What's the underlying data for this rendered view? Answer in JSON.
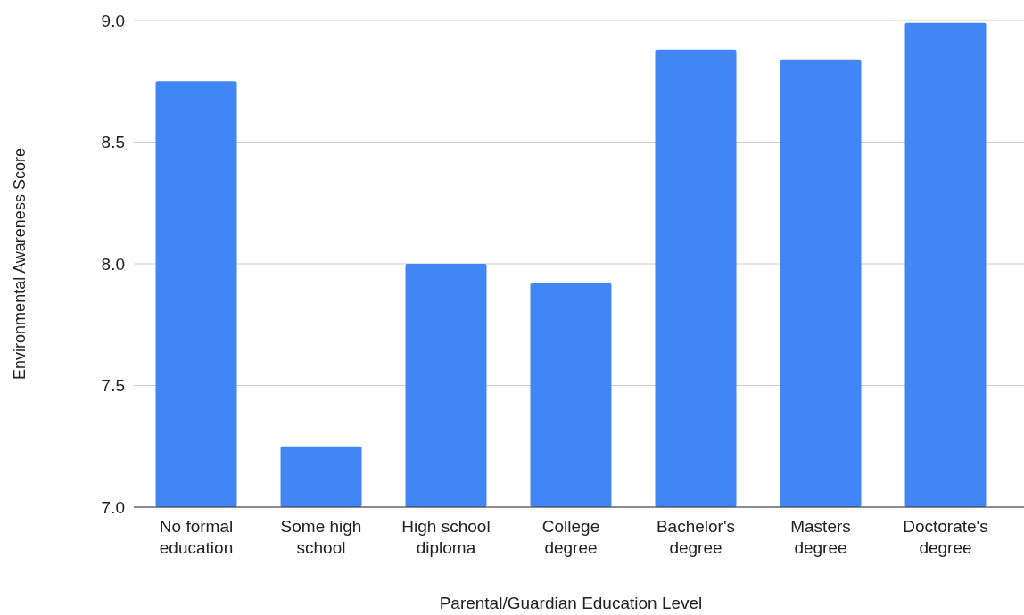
{
  "chart_data": {
    "type": "bar",
    "xlabel": "Parental/Guardian Education Level",
    "ylabel": "Environmental Awareness Score",
    "categories": [
      "No formal education",
      "Some high school",
      "High school diploma",
      "College degree",
      "Bachelor's degree",
      "Masters degree",
      "Doctorate's degree"
    ],
    "values": [
      8.75,
      7.25,
      8.0,
      7.92,
      8.88,
      8.84,
      8.99
    ],
    "color": "#4285f4",
    "ylim": [
      7.0,
      9.0
    ],
    "yticks": [
      {
        "value": 7.0,
        "label": "7.0"
      },
      {
        "value": 7.5,
        "label": "7.5"
      },
      {
        "value": 8.0,
        "label": "8.0"
      },
      {
        "value": 8.5,
        "label": "8.5"
      },
      {
        "value": 9.0,
        "label": "9.0"
      }
    ],
    "grid": "y"
  }
}
